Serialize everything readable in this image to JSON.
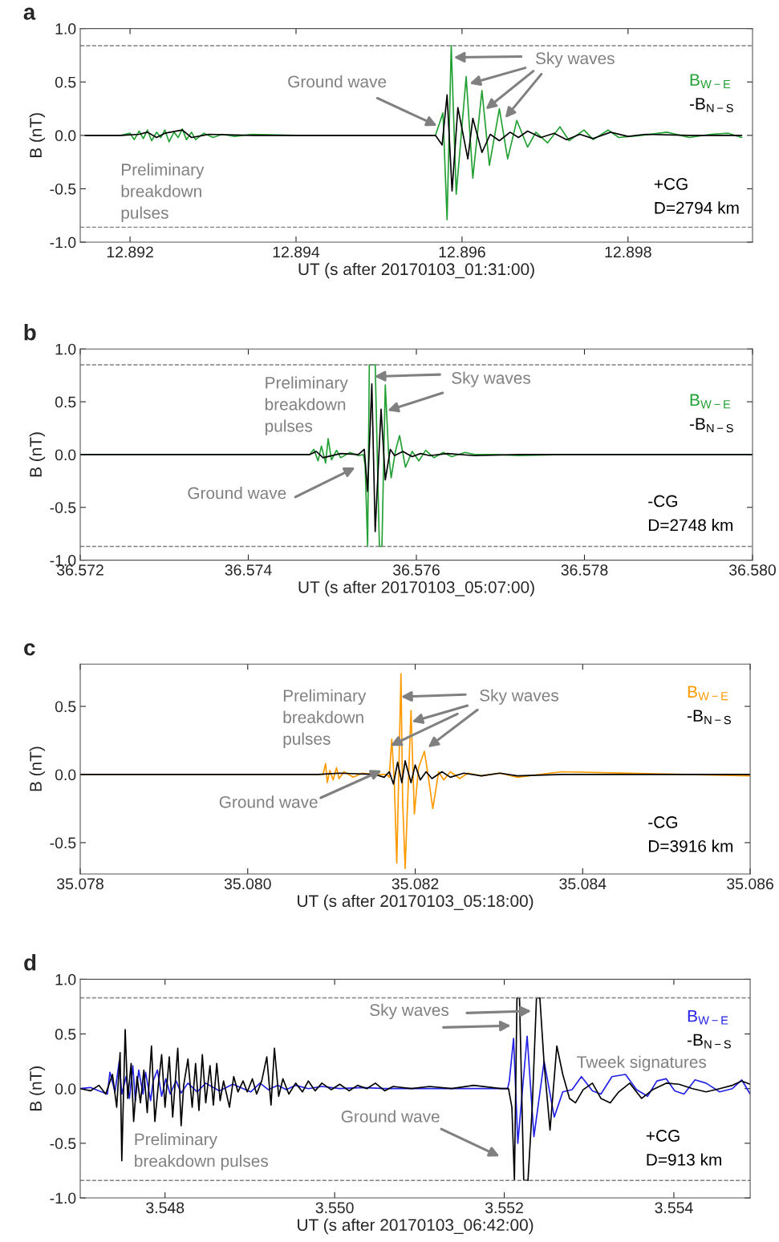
{
  "chart_data": [
    {
      "type": "line",
      "title": "a",
      "xlabel": "UT (s after 20170103_01:31:00)",
      "ylabel": "B (nT)",
      "xlim": [
        12.8914,
        12.8995
      ],
      "xticks": [
        12.892,
        12.894,
        12.896,
        12.898
      ],
      "ylim": [
        -1.0,
        1.0
      ],
      "yticks": [
        {
          "value": -1,
          "label": "-1.0"
        },
        {
          "value": -0.5,
          "label": "-0.5"
        },
        {
          "value": 0,
          "label": "0.0"
        },
        {
          "value": 0.5,
          "label": "0.5"
        },
        {
          "value": 1,
          "label": "1.0"
        }
      ],
      "legend": "right",
      "ref_lines": [
        {
          "axis": "y",
          "value": 0.84,
          "color": "#808080",
          "line_style": "dashed"
        },
        {
          "axis": "y",
          "value": -0.86,
          "color": "#808080",
          "line_style": "dashed"
        }
      ],
      "annotations": [
        {
          "text": "Ground wave",
          "x": 12.8957,
          "y": 0.09
        },
        {
          "text": "Sky waves",
          "x": 12.8959,
          "y": 0.73
        },
        "Preliminary\nbreakdown\npulses",
        "+CG",
        "D=2794 km"
      ],
      "series": [
        {
          "name": "B$_{W−E}$",
          "color": "#22a033",
          "x": [
            12.89146,
            12.89189,
            12.892,
            12.89205,
            12.89211,
            12.89216,
            12.89221,
            12.89226,
            12.89232,
            12.89237,
            12.89242,
            12.89247,
            12.89253,
            12.89258,
            12.89263,
            12.89268,
            12.89274,
            12.89279,
            12.89289,
            12.893,
            12.89311,
            12.89326,
            12.89347,
            12.894,
            12.89505,
            12.89568,
            12.89577,
            12.89582,
            12.89587,
            12.89593,
            12.89605,
            12.89613,
            12.89624,
            12.89633,
            12.89645,
            12.89655,
            12.89666,
            12.89679,
            12.89689,
            12.89703,
            12.89718,
            12.89729,
            12.89747,
            12.89758,
            12.89776,
            12.89789,
            12.89816,
            12.89847,
            12.89874,
            12.899,
            12.89921,
            12.89937
          ],
          "values": [
            0,
            0,
            0.02,
            -0.04,
            0.04,
            -0.03,
            0.05,
            -0.05,
            0.03,
            -0.02,
            0.05,
            -0.06,
            0.03,
            -0.02,
            0.06,
            -0.04,
            0.03,
            -0.04,
            0.02,
            -0.02,
            0.01,
            -0.01,
            0.01,
            0,
            0,
            0,
            0.21,
            -0.79,
            0.84,
            -0.55,
            0.55,
            -0.4,
            0.42,
            -0.28,
            0.25,
            -0.22,
            0.14,
            -0.11,
            0.03,
            -0.07,
            0.08,
            -0.05,
            0.05,
            -0.04,
            0.05,
            -0.02,
            0,
            0.03,
            -0.02,
            0.01,
            0.02,
            -0.02
          ]
        },
        {
          "name": "-B$_{N−S}$",
          "color": "#000000",
          "x": [
            12.89146,
            12.89189,
            12.89211,
            12.89221,
            12.89232,
            12.89242,
            12.89263,
            12.89274,
            12.89295,
            12.89347,
            12.89568,
            12.89576,
            12.89582,
            12.89588,
            12.89595,
            12.89607,
            12.89613,
            12.89624,
            12.89634,
            12.89645,
            12.89658,
            12.89668,
            12.89679,
            12.89695,
            12.89711,
            12.89726,
            12.89742,
            12.89758,
            12.89779,
            12.898,
            12.89821,
            12.89874,
            12.89937
          ],
          "values": [
            0,
            0,
            0.01,
            0.03,
            -0.02,
            0.02,
            0.05,
            -0.02,
            0.01,
            0,
            0,
            -0.09,
            0.38,
            -0.52,
            0.26,
            -0.22,
            0.16,
            -0.16,
            0.01,
            -0.05,
            0.03,
            -0.02,
            0.04,
            -0.02,
            0.02,
            -0.04,
            0.01,
            -0.03,
            0.03,
            -0.01,
            0.01,
            0,
            0
          ]
        }
      ]
    },
    {
      "type": "line",
      "title": "b",
      "xlabel": "UT (s after 20170103_05:07:00)",
      "ylabel": "B (nT)",
      "xlim": [
        36.572,
        36.58
      ],
      "xticks": [
        36.572,
        36.574,
        36.576,
        36.578,
        {
          "value": 36.58,
          "label": "36.580"
        }
      ],
      "ylim": [
        -1.0,
        1.0
      ],
      "yticks": [
        {
          "value": -1,
          "label": "-1.0"
        },
        {
          "value": -0.5,
          "label": "-0.5"
        },
        {
          "value": 0,
          "label": "0.0"
        },
        {
          "value": 0.5,
          "label": "0.5"
        },
        {
          "value": 1,
          "label": "1.0"
        }
      ],
      "legend": "right",
      "ref_lines": [
        {
          "axis": "y",
          "value": 0.85,
          "color": "#808080",
          "line_style": "dashed"
        },
        {
          "axis": "y",
          "value": -0.87,
          "color": "#808080",
          "line_style": "dashed"
        }
      ],
      "annotations": [
        "Preliminary\nbreakdown\npulses",
        {
          "text": "Sky waves",
          "x": 36.5755,
          "y": 0.74
        },
        "Ground wave",
        "-CG",
        "D=2748 km"
      ],
      "series": [
        {
          "name": "B$_{W−E}$",
          "color": "#22a033",
          "x": [
            36.572,
            36.57473,
            36.57478,
            36.57483,
            36.57487,
            36.57492,
            36.57495,
            36.57499,
            36.57505,
            36.5751,
            36.57521,
            36.57531,
            36.57537,
            36.57539,
            36.57542,
            36.57544,
            36.57551,
            36.57556,
            36.57559,
            36.57563,
            36.57567,
            36.5757,
            36.57575,
            36.5758,
            36.57587,
            36.57595,
            36.57603,
            36.57611,
            36.57621,
            36.57632,
            36.57642,
            36.57658,
            36.57669,
            36.57695,
            36.57722,
            36.57775,
            36.58
          ],
          "values": [
            0,
            0,
            0.05,
            -0.06,
            0.08,
            -0.08,
            0.15,
            -0.05,
            0.04,
            -0.03,
            0.02,
            -0.01,
            0,
            -0.1,
            -0.87,
            0.85,
            0.85,
            -0.87,
            -0.87,
            0.66,
            0,
            -0.22,
            0.03,
            0.18,
            -0.12,
            0.03,
            -0.06,
            0.04,
            -0.03,
            0.02,
            -0.02,
            0.02,
            0,
            0,
            -0.01,
            0,
            0
          ]
        },
        {
          "name": "-B$_{N−S}$",
          "color": "#000000",
          "x": [
            36.572,
            36.57473,
            36.57481,
            36.57489,
            36.5751,
            36.57531,
            36.57538,
            36.57542,
            36.57547,
            36.57551,
            36.57558,
            36.57563,
            36.57569,
            36.57574,
            36.57584,
            36.57595,
            36.57605,
            36.57616,
            36.57637,
            36.57669,
            36.57722,
            36.58
          ],
          "values": [
            0,
            0,
            0.03,
            -0.03,
            0.01,
            0,
            0.05,
            -0.35,
            0.67,
            -0.73,
            0.43,
            -0.24,
            0.05,
            -0.01,
            0.03,
            -0.02,
            0.01,
            -0.01,
            0.01,
            -0.01,
            0,
            0
          ]
        }
      ]
    },
    {
      "type": "line",
      "title": "c",
      "xlabel": "UT (s after 20170103_05:18:00)",
      "ylabel": "B (nT)",
      "xlim": [
        35.078,
        35.086
      ],
      "xticks": [
        35.078,
        {
          "value": 35.08,
          "label": "35.080"
        },
        35.082,
        35.084,
        35.086
      ],
      "ylim": [
        -0.73,
        0.81
      ],
      "yticks": [
        {
          "value": -0.5,
          "label": "-0.5"
        },
        {
          "value": 0,
          "label": "0.0"
        },
        {
          "value": 0.5,
          "label": "0.5"
        }
      ],
      "legend": "right",
      "annotations": [
        "Preliminary\nbreakdown\npulses",
        {
          "text": "Sky waves",
          "x": 35.08183,
          "y": 0.57
        },
        {
          "text": "Ground wave",
          "x": 35.0816,
          "y": 0.03
        },
        "-CG",
        "D=3916 km"
      ],
      "series": [
        {
          "name": "B$_{W−E}$",
          "color": "#ff9900",
          "x": [
            35.078,
            35.08084,
            35.0809,
            35.08093,
            35.08095,
            35.08098,
            35.08102,
            35.08106,
            35.08109,
            35.08115,
            35.08126,
            35.08137,
            35.08152,
            35.08166,
            35.08169,
            35.08172,
            35.08175,
            35.08178,
            35.08183,
            35.08185,
            35.08188,
            35.08195,
            35.08199,
            35.08204,
            35.08211,
            35.08216,
            35.08221,
            35.08228,
            35.08234,
            35.08242,
            35.08253,
            35.08263,
            35.08279,
            35.08301,
            35.08322,
            35.08375,
            35.086
          ],
          "values": [
            0,
            0,
            0,
            0.08,
            -0.06,
            0.03,
            -0.04,
            0.05,
            -0.03,
            0.02,
            -0.02,
            0.01,
            0,
            0,
            -0.02,
            0.26,
            -0.05,
            -0.65,
            0.74,
            -0.19,
            -0.69,
            0.47,
            -0.29,
            0.05,
            0.17,
            -0.03,
            -0.25,
            0.02,
            -0.04,
            0.02,
            -0.03,
            0.01,
            -0.01,
            0.01,
            -0.02,
            0.02,
            -0.01
          ]
        },
        {
          "name": "-B$_{N−S}$",
          "color": "#000000",
          "x": [
            35.078,
            35.08084,
            35.0811,
            35.08152,
            35.08163,
            35.08169,
            35.08174,
            35.08179,
            35.08184,
            35.08188,
            35.08195,
            35.082,
            35.08206,
            35.08213,
            35.0822,
            35.08232,
            35.08242,
            35.08258,
            35.08279,
            35.08301,
            35.08322,
            35.08375,
            35.086
          ],
          "values": [
            0,
            0,
            0.01,
            0,
            -0.02,
            0.02,
            -0.07,
            0.09,
            -0.06,
            0.1,
            -0.06,
            0.07,
            -0.04,
            0.02,
            -0.03,
            0.02,
            -0.02,
            0.01,
            -0.01,
            0.01,
            -0.01,
            0,
            0
          ]
        }
      ]
    },
    {
      "type": "line",
      "title": "d",
      "xlabel": "UT (s after 20170103_06:42:00)",
      "ylabel": "B (nT)",
      "xlim": [
        3.547,
        3.5549
      ],
      "xticks": [
        3.548,
        {
          "value": 3.55,
          "label": "3.550"
        },
        3.552,
        3.554
      ],
      "ylim": [
        -1.0,
        1.0
      ],
      "yticks": [
        {
          "value": -1,
          "label": "-1.0"
        },
        {
          "value": -0.5,
          "label": "-0.5"
        },
        {
          "value": 0,
          "label": "0.0"
        },
        {
          "value": 0.5,
          "label": "0.5"
        },
        {
          "value": 1,
          "label": "1.0"
        }
      ],
      "legend": "right",
      "ref_lines": [
        {
          "axis": "y",
          "value": 0.83,
          "color": "#808080",
          "line_style": "dashed"
        },
        {
          "axis": "y",
          "value": -0.84,
          "color": "#808080",
          "line_style": "dashed"
        }
      ],
      "annotations": [
        {
          "text": "Sky waves",
          "x": 3.55232,
          "y": 0.71
        },
        "Tweek signatures",
        "Ground wave",
        "Preliminary\nbreakdown pulses",
        "+CG",
        "D=913 km"
      ],
      "series": [
        {
          "name": "B$_{W−E}$",
          "color": "#2222e6",
          "x": [
            3.547,
            3.54712,
            3.54722,
            3.54732,
            3.54735,
            3.54741,
            3.54746,
            3.54749,
            3.54754,
            3.54758,
            3.54762,
            3.54765,
            3.54769,
            3.54774,
            3.54777,
            3.54783,
            3.54786,
            3.54791,
            3.54796,
            3.54801,
            3.54806,
            3.54813,
            3.54819,
            3.54827,
            3.54838,
            3.54848,
            3.54864,
            3.5488,
            3.54901,
            3.54912,
            3.54922,
            3.54933,
            3.54943,
            3.54954,
            3.54969,
            3.54985,
            3.55006,
            3.55033,
            3.55059,
            3.55112,
            3.55164,
            3.55204,
            3.55206,
            3.55211,
            3.55216,
            3.55227,
            3.55235,
            3.55247,
            3.55259,
            3.55269,
            3.5528,
            3.55291,
            3.55304,
            3.55314,
            3.55327,
            3.55343,
            3.55356,
            3.55369,
            3.5538,
            3.55391,
            3.55401,
            3.55412,
            3.55425,
            3.55438,
            3.55454,
            3.55469,
            3.5548,
            3.5549
          ],
          "values": [
            0,
            0.01,
            -0.02,
            -0.05,
            0.15,
            -0.03,
            0.25,
            -0.05,
            0.11,
            -0.09,
            0.21,
            -0.11,
            0.17,
            -0.05,
            0.15,
            -0.11,
            0.07,
            0.17,
            -0.07,
            0.09,
            -0.05,
            0.07,
            -0.04,
            0.05,
            -0.03,
            0.05,
            -0.02,
            0.04,
            -0.03,
            0.05,
            -0.01,
            0.03,
            -0.01,
            0.03,
            0,
            0.02,
            0,
            0.01,
            0,
            0,
            0,
            0,
            0.07,
            0.46,
            -0.5,
            0.48,
            -0.44,
            0.25,
            -0.26,
            -0.03,
            -0.01,
            0.11,
            -0.02,
            -0.05,
            0.11,
            0.13,
            -0.01,
            -0.07,
            0.07,
            0.09,
            -0.02,
            -0.05,
            0.08,
            0.05,
            -0.03,
            0,
            0.08,
            -0.05
          ]
        },
        {
          "name": "-B$_{N−S}$",
          "color": "#000000",
          "x": [
            3.547,
            3.54712,
            3.54722,
            3.5473,
            3.54738,
            3.54743,
            3.54747,
            3.54749,
            3.54753,
            3.54756,
            3.5476,
            3.54763,
            3.54767,
            3.54771,
            3.54775,
            3.54779,
            3.54784,
            3.54788,
            3.54792,
            3.54796,
            3.548,
            3.54805,
            3.54809,
            3.54815,
            3.54819,
            3.54822,
            3.54827,
            3.54832,
            3.54836,
            3.5484,
            3.54844,
            3.54848,
            3.54853,
            3.54857,
            3.54861,
            3.54865,
            3.54869,
            3.54876,
            3.54881,
            3.54886,
            3.54892,
            3.54897,
            3.54903,
            3.54908,
            3.54914,
            3.5492,
            3.54925,
            3.54929,
            3.54934,
            3.54939,
            3.54946,
            3.54954,
            3.54962,
            3.54969,
            3.54977,
            3.54985,
            3.54996,
            3.55006,
            3.55017,
            3.55027,
            3.55038,
            3.55048,
            3.55059,
            3.55069,
            3.55091,
            3.55112,
            3.55138,
            3.55164,
            3.55196,
            3.55205,
            3.55209,
            3.55212,
            3.55215,
            3.55218,
            3.55223,
            3.55228,
            3.55233,
            3.55238,
            3.55242,
            3.55247,
            3.55254,
            3.55262,
            3.55269,
            3.55277,
            3.55284,
            3.55293,
            3.55304,
            3.55314,
            3.55325,
            3.55335,
            3.55348,
            3.55362,
            3.55375,
            3.55391,
            3.55406,
            3.55422,
            3.55438,
            3.55454,
            3.55469,
            3.5548,
            3.5549
          ],
          "values": [
            0,
            -0.02,
            0.03,
            -0.05,
            0.13,
            -0.17,
            0.33,
            -0.66,
            0.54,
            -0.09,
            0.23,
            -0.3,
            0.11,
            -0.13,
            0.17,
            -0.22,
            0.39,
            -0.3,
            0.03,
            0.31,
            -0.17,
            0.29,
            -0.26,
            0.37,
            -0.34,
            0.03,
            0.27,
            -0.17,
            0.23,
            -0.2,
            0.31,
            -0.13,
            0.21,
            -0.15,
            0.23,
            -0.11,
            0.07,
            -0.17,
            0.11,
            -0.03,
            0.07,
            -0.03,
            0.09,
            -0.05,
            0.07,
            0.29,
            -0.15,
            0.37,
            -0.07,
            0.09,
            -0.05,
            0.05,
            -0.03,
            0.07,
            -0.02,
            0.05,
            -0.01,
            0.04,
            -0.02,
            0.03,
            0,
            0.05,
            -0.02,
            0.02,
            0,
            0.02,
            0,
            0.03,
            0,
            0,
            -0.17,
            -0.84,
            0.83,
            0.83,
            -0.84,
            -0.84,
            -0.17,
            0.83,
            0.83,
            0.23,
            -0.38,
            0.39,
            0.13,
            -0.09,
            -0.13,
            -0.01,
            0.05,
            -0.09,
            -0.13,
            -0.03,
            0.05,
            -0.09,
            -0.01,
            0.05,
            0.04,
            0,
            -0.03,
            0,
            0.03,
            0.07,
            0.04
          ]
        }
      ]
    }
  ]
}
